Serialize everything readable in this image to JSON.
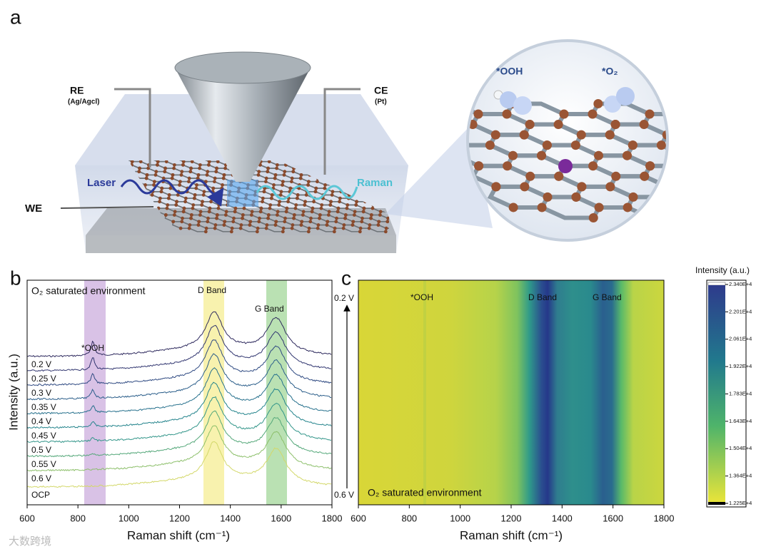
{
  "panel_a": {
    "label": "a",
    "reference_electrode": "RE",
    "reference_material": "(Ag/Agcl)",
    "counter_electrode": "CE",
    "counter_material": "(Pt)",
    "working_electrode": "WE",
    "laser": "Laser",
    "raman": "Raman",
    "ooh": "*OOH",
    "o2": "*O₂"
  },
  "panel_b": {
    "label": "b",
    "title": "O₂ saturated environment",
    "bands": [
      "*OOH",
      "D Band",
      "G Band"
    ],
    "potentials": [
      "0.2 V",
      "0.25 V",
      "0.3 V",
      "0.35 V",
      "0.4 V",
      "0.45 V",
      "0.5 V",
      "0.55 V",
      "0.6 V",
      "OCP"
    ],
    "y_axis_label": "Intensity (a.u.)",
    "x_axis_label": "Raman shift (cm⁻¹)",
    "xlim": [
      600,
      1800
    ],
    "xticks": [
      600,
      800,
      1000,
      1200,
      1400,
      1600,
      1800
    ]
  },
  "panel_c": {
    "label": "c",
    "bands": [
      "*OOH",
      "D Band",
      "G Band"
    ],
    "potential_top": "0.2 V",
    "potential_bottom": "0.6 V",
    "title": "O₂ saturated environment",
    "x_axis_label": "Raman shift (cm⁻¹)",
    "xlim": [
      600,
      1800
    ],
    "xticks": [
      600,
      800,
      1000,
      1200,
      1400,
      1600,
      1800
    ],
    "colorbar": {
      "title": "Intensity (a.u.)",
      "ticks": [
        "2.340E+4",
        "2.201E+4",
        "2.061E+4",
        "1.922E+4",
        "1.783E+4",
        "1.643E+4",
        "1.504E+4",
        "1.364E+4",
        "1.225E+4"
      ]
    }
  },
  "watermark": "大数跨境"
}
